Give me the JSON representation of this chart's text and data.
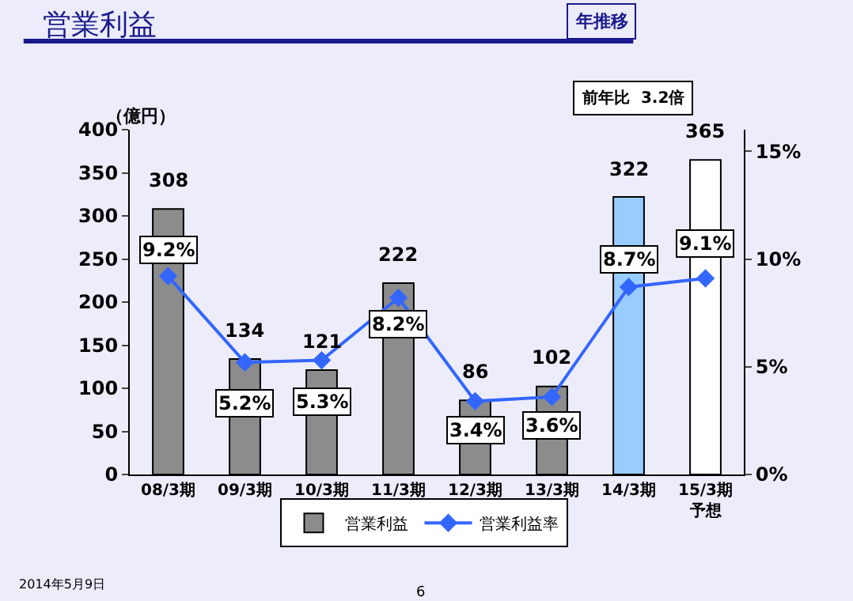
{
  "chart_data": {
    "type": "bar",
    "title": "営業利益",
    "ylabel": "（億円）",
    "categories": [
      "08/3期",
      "09/3期",
      "10/3期",
      "11/3期",
      "12/3期",
      "13/3期",
      "14/3期",
      "15/3期予想"
    ],
    "series": [
      {
        "name": "営業利益",
        "colors": [
          "#8c8c8c",
          "#8c8c8c",
          "#8c8c8c",
          "#8c8c8c",
          "#8c8c8c",
          "#8c8c8c",
          "#99ccff",
          "#ffffff"
        ],
        "values": [
          308,
          134,
          121,
          222,
          86,
          102,
          322,
          365
        ],
        "value_labels": [
          "308",
          "134",
          "121",
          "222",
          "86",
          "102",
          "322",
          "365"
        ]
      },
      {
        "name": "営業利益率",
        "type": "line",
        "axis": "y2",
        "color": "#3366ff",
        "values": [
          9.2,
          5.2,
          5.3,
          8.2,
          3.4,
          3.6,
          8.7,
          9.1
        ],
        "value_labels": [
          "9.2%",
          "5.2%",
          "5.3%",
          "8.2%",
          "3.4%",
          "3.6%",
          "8.7%",
          "9.1%"
        ]
      }
    ],
    "ylim": [
      0,
      400
    ],
    "yticks": [
      0,
      50,
      100,
      150,
      200,
      250,
      300,
      350,
      400
    ],
    "y2lim": [
      0,
      16
    ],
    "y2ticks": [
      {
        "value": 0,
        "label": "0%"
      },
      {
        "value": 5,
        "label": "5%"
      },
      {
        "value": 10,
        "label": "10%"
      },
      {
        "value": 15,
        "label": "15%"
      }
    ],
    "marker": "diamond",
    "line_style": "solid",
    "grid": false,
    "legend": "bottom",
    "annotations": [
      "年推移",
      "前年比  3.2倍",
      "2014年5月9日",
      "6"
    ]
  }
}
